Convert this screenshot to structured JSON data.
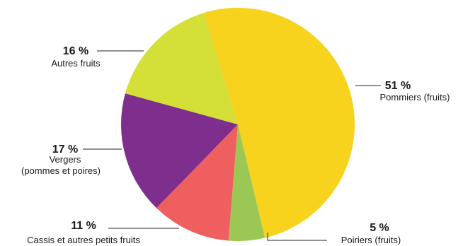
{
  "chart_data": {
    "type": "pie",
    "start_angle_deg": -17,
    "direction": "clockwise",
    "slices": [
      {
        "name_lines": [
          "Pommiers (fruits)"
        ],
        "value": 51,
        "value_label": "51 %",
        "color": "#F7D31E"
      },
      {
        "name_lines": [
          "Poiriers (fruits)"
        ],
        "value": 5,
        "value_label": "5 %",
        "color": "#9BC855"
      },
      {
        "name_lines": [
          "Cassis et autres petits fruits"
        ],
        "value": 11,
        "value_label": "11 %",
        "color": "#EF5F5F"
      },
      {
        "name_lines": [
          "Vergers",
          "(pommes et poires)"
        ],
        "value": 17,
        "value_label": "17 %",
        "color": "#7E2F8E"
      },
      {
        "name_lines": [
          "Autres fruits"
        ],
        "value": 16,
        "value_label": "16 %",
        "color": "#D4DF38"
      }
    ]
  }
}
